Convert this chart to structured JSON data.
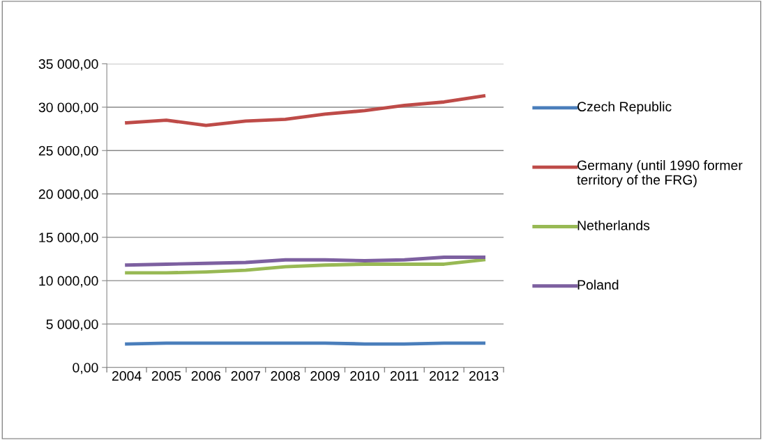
{
  "chart_data": {
    "type": "line",
    "categories": [
      "2004",
      "2005",
      "2006",
      "2007",
      "2008",
      "2009",
      "2010",
      "2011",
      "2012",
      "2013"
    ],
    "series": [
      {
        "name": "Czech Republic",
        "color": "#4a7ebb",
        "values": [
          2700,
          2800,
          2800,
          2800,
          2800,
          2800,
          2700,
          2700,
          2800,
          2800
        ]
      },
      {
        "name": "Germany (until 1990 former territory of the FRG)",
        "color": "#be4b48",
        "values": [
          28200,
          28500,
          27900,
          28400,
          28600,
          29200,
          29600,
          30200,
          30600,
          31300
        ]
      },
      {
        "name": "Netherlands",
        "color": "#98b954",
        "values": [
          10900,
          10900,
          11000,
          11200,
          11600,
          11800,
          11900,
          11900,
          11900,
          12400
        ]
      },
      {
        "name": "Poland",
        "color": "#7d60a0",
        "values": [
          11800,
          11900,
          12000,
          12100,
          12400,
          12400,
          12300,
          12400,
          12700,
          12700
        ]
      }
    ],
    "ylim": [
      0,
      35000
    ],
    "yticks": [
      {
        "value": 0,
        "label": "0,00"
      },
      {
        "value": 5000,
        "label": "5 000,00"
      },
      {
        "value": 10000,
        "label": "10 000,00"
      },
      {
        "value": 15000,
        "label": "15 000,00"
      },
      {
        "value": 20000,
        "label": "20 000,00"
      },
      {
        "value": 25000,
        "label": "25 000,00"
      },
      {
        "value": 30000,
        "label": "30 000,00"
      },
      {
        "value": 35000,
        "label": "35 000,00"
      }
    ],
    "grid": "y",
    "legend": "right",
    "marker": "none",
    "line_style": "solid"
  }
}
